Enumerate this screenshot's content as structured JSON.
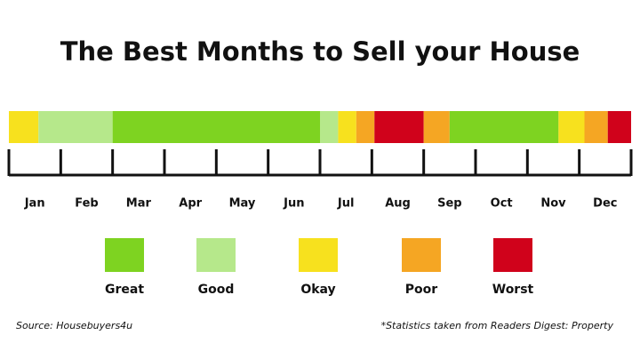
{
  "title": "The Best Months to Sell your House",
  "months": [
    "Jan",
    "Feb",
    "Mar",
    "Apr",
    "May",
    "Jun",
    "Jul",
    "Aug",
    "Sep",
    "Oct",
    "Nov",
    "Dec"
  ],
  "segments": [
    {
      "start": 0,
      "end": 0.57,
      "color": "#f7e11e"
    },
    {
      "start": 0.57,
      "end": 2,
      "color": "#b6e88b"
    },
    {
      "start": 2,
      "end": 6,
      "color": "#7ed321"
    },
    {
      "start": 6,
      "end": 6.35,
      "color": "#b6e88b"
    },
    {
      "start": 6.35,
      "end": 6.7,
      "color": "#f7e11e"
    },
    {
      "start": 6.7,
      "end": 7.05,
      "color": "#f5a623"
    },
    {
      "start": 7.05,
      "end": 8,
      "color": "#d0021b"
    },
    {
      "start": 8,
      "end": 8.5,
      "color": "#f5a623"
    },
    {
      "start": 8.5,
      "end": 10.6,
      "color": "#7ed321"
    },
    {
      "start": 10.6,
      "end": 11.1,
      "color": "#f7e11e"
    },
    {
      "start": 11.1,
      "end": 11.55,
      "color": "#f5a623"
    },
    {
      "start": 11.55,
      "end": 12,
      "color": "#d0021b"
    }
  ],
  "legend": [
    {
      "label": "Great",
      "color": "#7ed321"
    },
    {
      "label": "Good",
      "color": "#b6e88b"
    },
    {
      "label": "Okay",
      "color": "#f7e11e"
    },
    {
      "label": "Poor",
      "color": "#f5a623"
    },
    {
      "label": "Worst",
      "color": "#d0021b"
    }
  ],
  "source": "Source: Housebuyers4u",
  "note": "*Statistics taken from Readers Digest: Property"
}
